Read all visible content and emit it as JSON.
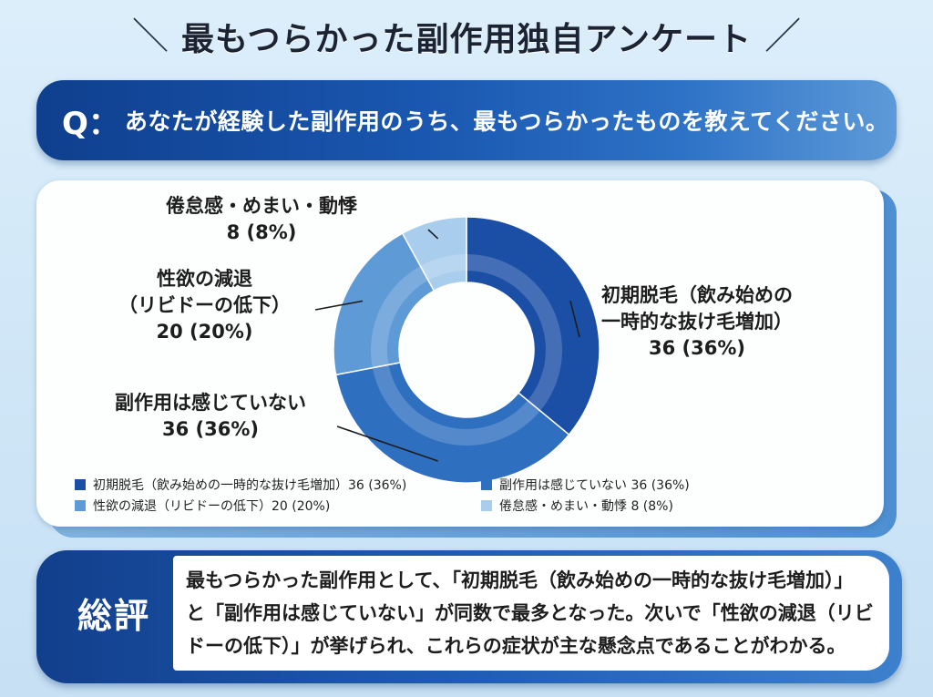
{
  "header": {
    "slash_left": "＼",
    "title": "最もつらかった副作用独自アンケート",
    "slash_right": "／"
  },
  "question": {
    "mark": "Q：",
    "text": "あなたが経験した副作用のうち、最もつらかったものを教えてください。"
  },
  "chart_data": {
    "type": "pie",
    "variant": "donut",
    "title": "最もつらかった副作用独自アンケート",
    "categories": [
      "初期脱毛（飲み始めの一時的な抜け毛増加）",
      "副作用は感じていない",
      "性欲の減退（リビドーの低下）",
      "倦怠感・めまい・動悸"
    ],
    "values": [
      36,
      36,
      20,
      8
    ],
    "percents": [
      36,
      36,
      20,
      8
    ],
    "colors": [
      "#1b4fa6",
      "#2f6fc0",
      "#5e9ad6",
      "#a9cdec"
    ],
    "legend_position": "bottom",
    "callouts": [
      {
        "lines": [
          "初期脱毛（飲み始めの",
          "一時的な抜け毛増加）",
          "36 (36%)"
        ]
      },
      {
        "lines": [
          "副作用は感じていない",
          "36 (36%)"
        ]
      },
      {
        "lines": [
          "性欲の減退",
          "（リビドーの低下）",
          "20 (20%)"
        ]
      },
      {
        "lines": [
          "倦怠感・めまい・動悸",
          "8 (8%)"
        ]
      }
    ],
    "legend": [
      "初期脱毛（飲み始めの一時的な抜け毛増加）36 (36%)",
      "副作用は感じていない 36 (36%)",
      "性欲の減退（リビドーの低下）20 (20%)",
      "倦怠感・めまい・動悸 8 (8%)"
    ]
  },
  "summary": {
    "label": "総評",
    "lines": [
      "最もつらかった副作用として、「初期脱毛（飲み始めの一時的な抜け毛増加）」",
      "と「副作用は感じていない」が同数で最多となった。次いで「性欲の減退（リビ",
      "ドーの低下）」が挙げられ、これらの症状が主な懸念点であることがわかる。"
    ]
  }
}
